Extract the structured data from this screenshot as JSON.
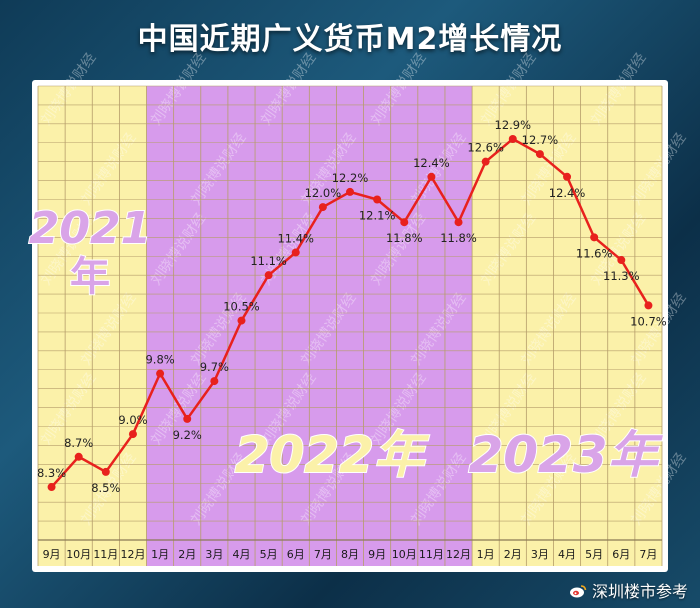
{
  "title": "中国近期广义货币M2增长情况",
  "footer": {
    "credit": "深圳楼市参考",
    "icon": "weibo-icon"
  },
  "watermark": "刘晓博说财经",
  "colors": {
    "band_2021": "#fbf1a9",
    "band_2022": "#d79bec",
    "band_2023": "#fbf1a9",
    "line": "#e8211d",
    "grid": "#b59d6a",
    "year_label": "#d9a4e8",
    "year_label_2022": "#fbf1a9"
  },
  "chart_data": {
    "type": "line",
    "title": "中国近期广义货币M2增长情况",
    "xlabel": "",
    "ylabel": "",
    "ylim": [
      7.6,
      13.6
    ],
    "grid": true,
    "categories": [
      "9月",
      "10月",
      "11月",
      "12月",
      "1月",
      "2月",
      "3月",
      "4月",
      "5月",
      "6月",
      "7月",
      "8月",
      "9月",
      "10月",
      "11月",
      "12月",
      "1月",
      "2月",
      "3月",
      "4月",
      "5月",
      "6月",
      "7月"
    ],
    "series": [
      {
        "values": [
          8.3,
          8.7,
          8.5,
          9.0,
          9.8,
          9.2,
          9.7,
          10.5,
          11.1,
          11.4,
          12.0,
          12.2,
          12.1,
          11.8,
          12.4,
          11.8,
          12.6,
          12.9,
          12.7,
          12.4,
          11.6,
          11.3,
          10.7
        ],
        "labels": [
          "8.3%",
          "8.7%",
          "8.5%",
          "9.0%",
          "9.8%",
          "9.2%",
          "9.7%",
          "10.5%",
          "11.1%",
          "11.4%",
          "12.0%",
          "12.2%",
          "12.1%",
          "11.8%",
          "12.4%",
          "11.8%",
          "12.6%",
          "12.9%",
          "12.7%",
          "12.4%",
          "11.6%",
          "11.3%",
          "10.7%"
        ]
      }
    ],
    "year_groups": [
      {
        "label": "2021",
        "label_suffix": "年",
        "start": 0,
        "end": 3
      },
      {
        "label": "2022年",
        "start": 4,
        "end": 15
      },
      {
        "label": "2023年",
        "start": 16,
        "end": 22
      }
    ]
  }
}
